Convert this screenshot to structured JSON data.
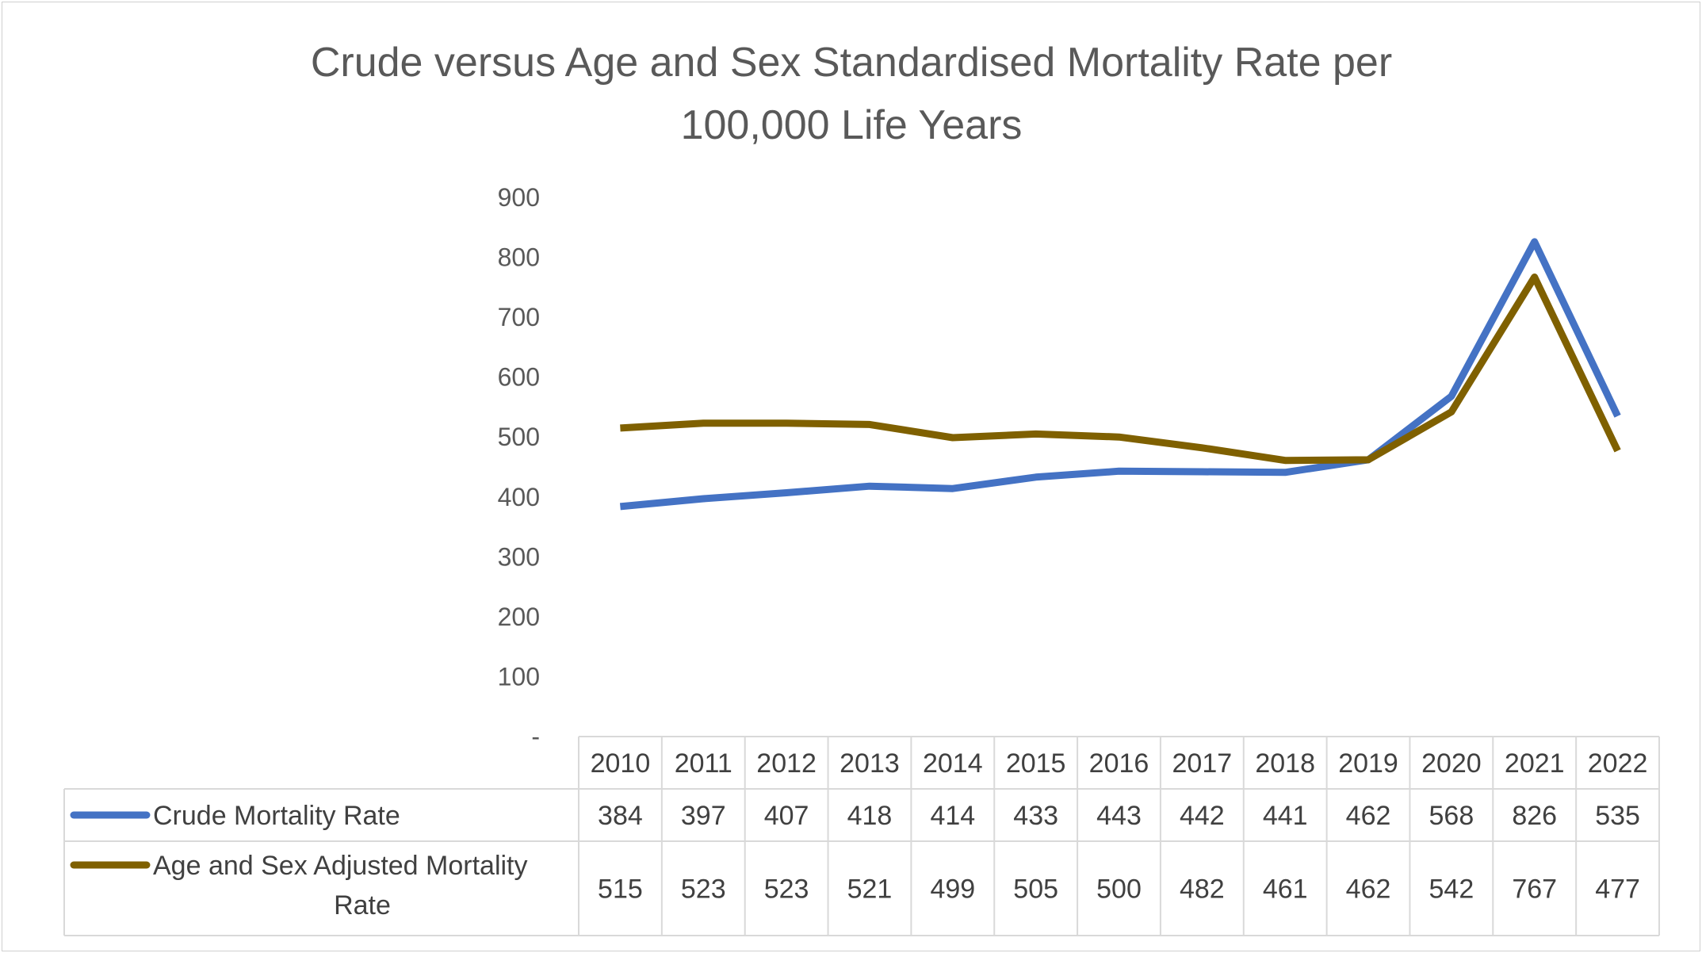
{
  "chart_data": {
    "type": "line",
    "title": "Crude versus Age and Sex Standardised Mortality Rate per 100,000 Life Years",
    "title_lines": [
      "Crude versus Age and Sex Standardised Mortality Rate per",
      "100,000 Life Years"
    ],
    "categories": [
      "2010",
      "2011",
      "2012",
      "2013",
      "2014",
      "2015",
      "2016",
      "2017",
      "2018",
      "2019",
      "2020",
      "2021",
      "2022"
    ],
    "series": [
      {
        "name": "Crude Mortality Rate",
        "name_lines": [
          "Crude Mortality Rate"
        ],
        "color": "#4472C4",
        "values": [
          384,
          397,
          407,
          418,
          414,
          433,
          443,
          442,
          441,
          462,
          568,
          826,
          535
        ]
      },
      {
        "name": "Age and Sex Adjusted Mortality Rate",
        "name_lines": [
          "Age and Sex Adjusted Mortality",
          "Rate"
        ],
        "color": "#7F6000",
        "values": [
          515,
          523,
          523,
          521,
          499,
          505,
          500,
          482,
          461,
          462,
          542,
          767,
          477
        ]
      }
    ],
    "ylim": [
      0,
      900
    ],
    "yticks": [
      "-",
      "100",
      "200",
      "300",
      "400",
      "500",
      "600",
      "700",
      "800",
      "900"
    ],
    "ytick_values": [
      0,
      100,
      200,
      300,
      400,
      500,
      600,
      700,
      800,
      900
    ],
    "xlabel": "",
    "ylabel": "",
    "grid": false,
    "legend": "data-table"
  }
}
